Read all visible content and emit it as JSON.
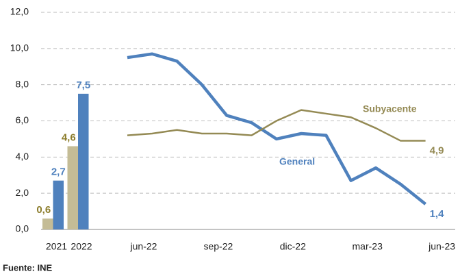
{
  "chart_data": [
    {
      "type": "bar",
      "categories": [
        "2021",
        "2022"
      ],
      "series": [
        {
          "name": "Subyacente",
          "color": "#c4bc96",
          "label_color": "#8c7d2c",
          "values": [
            0.6,
            4.6
          ],
          "value_labels": [
            "0,6",
            "4,6"
          ]
        },
        {
          "name": "General",
          "color": "#4f81bd",
          "label_color": "#4f81bd",
          "values": [
            2.7,
            7.5
          ],
          "value_labels": [
            "2,7",
            "7,5"
          ]
        }
      ],
      "ylim": [
        0,
        12
      ],
      "yticks": [
        {
          "value": 0,
          "label": "0,0"
        },
        {
          "value": 2,
          "label": "2,0"
        },
        {
          "value": 4,
          "label": "4,0"
        },
        {
          "value": 6,
          "label": "6,0"
        },
        {
          "value": 8,
          "label": "8,0"
        },
        {
          "value": 10,
          "label": "10,0"
        },
        {
          "value": 12,
          "label": "12,0"
        }
      ],
      "grid": true
    },
    {
      "type": "line",
      "categories": [
        "jun-22",
        null,
        null,
        "sep-22",
        null,
        null,
        "dic-22",
        null,
        null,
        "mar-23",
        null,
        null,
        "jun-23"
      ],
      "series": [
        {
          "name": "General",
          "color": "#4f81bd",
          "width": 4.5,
          "values": [
            9.5,
            9.7,
            9.3,
            8.0,
            6.3,
            5.9,
            5.0,
            5.3,
            5.2,
            2.7,
            3.4,
            2.5,
            1.4
          ],
          "value_labels": [
            null,
            null,
            null,
            null,
            null,
            null,
            null,
            null,
            null,
            null,
            null,
            null,
            "1,4"
          ]
        },
        {
          "name": "Subyacente",
          "color": "#948a54",
          "width": 2.5,
          "values": [
            5.2,
            5.3,
            5.5,
            5.3,
            5.3,
            5.2,
            6.0,
            6.6,
            6.4,
            6.2,
            5.6,
            4.9,
            4.9
          ],
          "value_labels": [
            null,
            null,
            null,
            null,
            null,
            null,
            null,
            null,
            null,
            null,
            null,
            null,
            "4,9"
          ]
        }
      ],
      "ylim": [
        0,
        12
      ]
    }
  ],
  "source": "Fuente: INE"
}
